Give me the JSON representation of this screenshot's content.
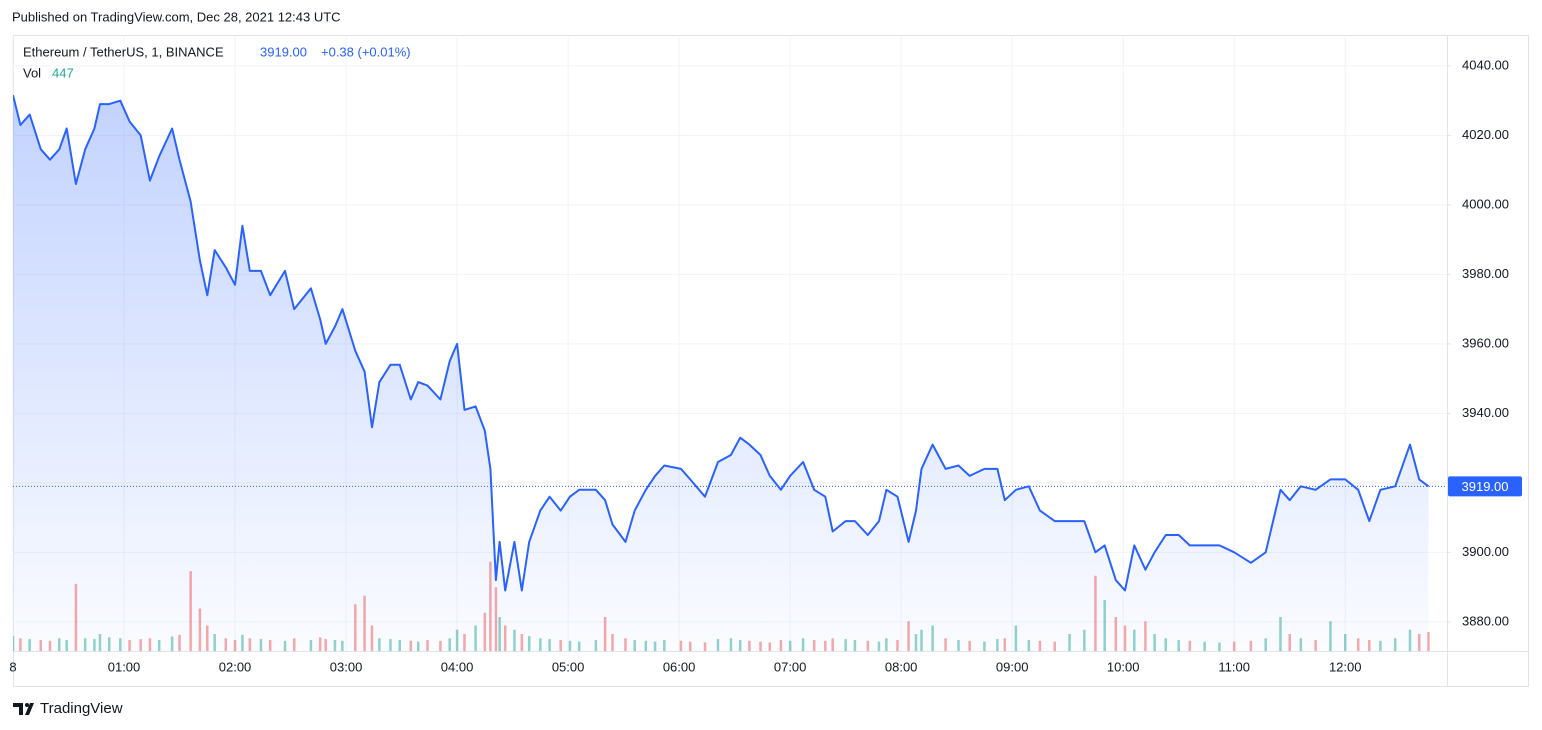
{
  "header": "Published on TradingView.com, Dec 28, 2021 12:43 UTC",
  "footer": "TradingView",
  "chart_data": {
    "type": "line",
    "legend": {
      "change": "+0.38 (+0.01%)",
      "volume_last": 447
    },
    "last_price": {
      "value": 3919,
      "label": "3919.00"
    },
    "x": [
      0,
      4,
      9,
      15,
      20,
      25,
      29,
      34,
      39,
      44,
      47,
      52,
      58,
      63,
      69,
      74,
      79,
      86,
      90,
      96,
      101,
      105,
      109,
      115,
      120,
      124,
      128,
      134,
      139,
      147,
      152,
      161,
      166,
      169,
      174,
      178,
      185,
      190,
      194,
      198,
      204,
      209,
      215,
      219,
      224,
      231,
      236,
      240,
      244,
      250,
      255,
      258,
      261,
      263,
      266,
      271,
      275,
      279,
      285,
      290,
      296,
      301,
      306,
      315,
      320,
      324,
      331,
      336,
      342,
      347,
      352,
      361,
      366,
      374,
      381,
      388,
      393,
      398,
      404,
      409,
      415,
      420,
      427,
      433,
      439,
      443,
      450,
      455,
      462,
      468,
      472,
      478,
      484,
      488,
      491,
      497,
      504,
      511,
      517,
      525,
      532,
      536,
      542,
      549,
      555,
      563,
      571,
      579,
      585,
      590,
      596,
      601,
      606,
      612,
      617,
      623,
      630,
      636,
      644,
      652,
      660,
      669,
      677,
      685,
      690,
      696,
      704,
      712,
      720,
      727,
      733,
      739,
      747,
      755,
      760,
      765
    ],
    "series": [
      {
        "name": "Ethereum / TetherUS, 1, BINANCE",
        "color": "#2962ff",
        "values": [
          4031.6,
          4023,
          4026,
          4016,
          4013,
          4016,
          4022,
          4006,
          4016,
          4022,
          4029,
          4029,
          4030,
          4024,
          4020,
          4007,
          4014,
          4022,
          4013,
          4001,
          3984,
          3974,
          3987,
          3982,
          3977,
          3994,
          3981,
          3981,
          3974,
          3981,
          3970,
          3976,
          3967,
          3960,
          3965,
          3970,
          3958,
          3952,
          3936,
          3949,
          3954,
          3954,
          3944,
          3949,
          3948,
          3944,
          3955,
          3960,
          3941,
          3942,
          3935,
          3924,
          3892,
          3903,
          3889,
          3903,
          3889,
          3903,
          3912,
          3916,
          3912,
          3916,
          3918,
          3918,
          3915,
          3908,
          3903,
          3912,
          3918,
          3922,
          3925,
          3924,
          3921,
          3916,
          3926,
          3928,
          3933,
          3931,
          3928,
          3922,
          3918,
          3922,
          3926,
          3918,
          3916,
          3906,
          3909,
          3909,
          3905,
          3909,
          3918,
          3916,
          3903,
          3912,
          3924,
          3931,
          3924,
          3925,
          3922,
          3924,
          3924,
          3915,
          3918,
          3919,
          3912,
          3909,
          3909,
          3909,
          3900,
          3902,
          3892,
          3889,
          3902,
          3895,
          3900,
          3905,
          3905,
          3902,
          3902,
          3902,
          3900,
          3897,
          3900,
          3918,
          3915,
          3919,
          3918,
          3921,
          3921,
          3918,
          3909,
          3918,
          3919,
          3931,
          3921,
          3919
        ]
      },
      {
        "name": "Vol",
        "axis": "y2",
        "up_color": "#26a69a",
        "down_color": "#ef5350",
        "values": [
          350,
          300,
          280,
          260,
          240,
          300,
          260,
          1580,
          300,
          280,
          400,
          320,
          300,
          260,
          280,
          300,
          260,
          340,
          380,
          1880,
          1000,
          600,
          400,
          300,
          260,
          380,
          300,
          280,
          260,
          240,
          300,
          260,
          320,
          280,
          260,
          240,
          1100,
          1300,
          600,
          300,
          280,
          260,
          240,
          220,
          260,
          240,
          300,
          500,
          400,
          600,
          900,
          2100,
          1500,
          800,
          600,
          500,
          400,
          350,
          300,
          280,
          260,
          240,
          220,
          260,
          800,
          400,
          300,
          260,
          240,
          220,
          260,
          240,
          220,
          200,
          280,
          300,
          260,
          240,
          220,
          200,
          260,
          240,
          300,
          260,
          240,
          300,
          280,
          260,
          240,
          220,
          300,
          260,
          700,
          400,
          500,
          600,
          300,
          260,
          240,
          220,
          280,
          300,
          600,
          260,
          240,
          220,
          400,
          500,
          1770,
          1200,
          800,
          600,
          500,
          700,
          400,
          300,
          260,
          240,
          220,
          200,
          220,
          240,
          300,
          800,
          400,
          300,
          260,
          700,
          400,
          300,
          260,
          240,
          300,
          500,
          400,
          447
        ]
      }
    ],
    "xlim": [
      0,
      775
    ],
    "xticks": [
      {
        "value": 0,
        "label": "8"
      },
      {
        "value": 60,
        "label": "01:00"
      },
      {
        "value": 120,
        "label": "02:00"
      },
      {
        "value": 180,
        "label": "03:00"
      },
      {
        "value": 240,
        "label": "04:00"
      },
      {
        "value": 300,
        "label": "05:00"
      },
      {
        "value": 360,
        "label": "06:00"
      },
      {
        "value": 420,
        "label": "07:00"
      },
      {
        "value": 480,
        "label": "08:00"
      },
      {
        "value": 540,
        "label": "09:00"
      },
      {
        "value": 600,
        "label": "10:00"
      },
      {
        "value": 660,
        "label": "11:00"
      },
      {
        "value": 720,
        "label": "12:00"
      }
    ],
    "ylim": [
      3871.6,
      4048.9
    ],
    "yticks": [
      {
        "value": 3880,
        "label": "3880.00"
      },
      {
        "value": 3900,
        "label": "3900.00"
      },
      {
        "value": 3920,
        "label": "3920.00"
      },
      {
        "value": 3940,
        "label": "3940.00"
      },
      {
        "value": 3960,
        "label": "3960.00"
      },
      {
        "value": 3980,
        "label": "3980.00"
      },
      {
        "value": 4000,
        "label": "4000.00"
      },
      {
        "value": 4020,
        "label": "4020.00"
      },
      {
        "value": 4040,
        "label": "4040.00"
      }
    ],
    "y2lim": [
      0,
      14500
    ],
    "grid": true
  }
}
